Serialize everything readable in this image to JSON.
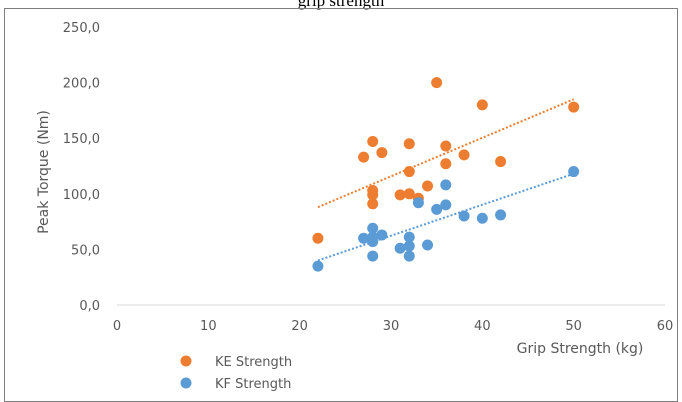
{
  "chart_data": {
    "type": "scatter",
    "title": "grip strength",
    "xlabel": "Grip Strength (kg)",
    "ylabel": "Peak Torque (Nm)",
    "xlim": [
      0,
      60
    ],
    "ylim": [
      0,
      250
    ],
    "xticks": [
      "0",
      "10",
      "20",
      "30",
      "40",
      "50",
      "60"
    ],
    "yticks": [
      "0,0",
      "50,0",
      "100,0",
      "150,0",
      "200,0",
      "250,0"
    ],
    "grid": false,
    "legend_position": "bottom-left",
    "series": [
      {
        "name": "KE Strength",
        "color": "#ed7d31",
        "points": [
          {
            "x": 22,
            "y": 60
          },
          {
            "x": 27,
            "y": 133
          },
          {
            "x": 28,
            "y": 147
          },
          {
            "x": 28,
            "y": 103
          },
          {
            "x": 28,
            "y": 99
          },
          {
            "x": 28,
            "y": 91
          },
          {
            "x": 29,
            "y": 137
          },
          {
            "x": 31,
            "y": 99
          },
          {
            "x": 32,
            "y": 145
          },
          {
            "x": 32,
            "y": 120
          },
          {
            "x": 32,
            "y": 100
          },
          {
            "x": 33,
            "y": 96
          },
          {
            "x": 34,
            "y": 107
          },
          {
            "x": 35,
            "y": 200
          },
          {
            "x": 36,
            "y": 143
          },
          {
            "x": 36,
            "y": 127
          },
          {
            "x": 38,
            "y": 135
          },
          {
            "x": 40,
            "y": 180
          },
          {
            "x": 42,
            "y": 129
          },
          {
            "x": 50,
            "y": 178
          }
        ],
        "trendline": {
          "x": [
            22,
            50
          ],
          "y": [
            88,
            185
          ]
        }
      },
      {
        "name": "KF Strength",
        "color": "#5b9bd5",
        "points": [
          {
            "x": 22,
            "y": 35
          },
          {
            "x": 27,
            "y": 60
          },
          {
            "x": 28,
            "y": 69
          },
          {
            "x": 28,
            "y": 61
          },
          {
            "x": 28,
            "y": 57
          },
          {
            "x": 28,
            "y": 44
          },
          {
            "x": 29,
            "y": 63
          },
          {
            "x": 31,
            "y": 51
          },
          {
            "x": 32,
            "y": 61
          },
          {
            "x": 32,
            "y": 53
          },
          {
            "x": 32,
            "y": 44
          },
          {
            "x": 33,
            "y": 92
          },
          {
            "x": 34,
            "y": 54
          },
          {
            "x": 35,
            "y": 86
          },
          {
            "x": 36,
            "y": 108
          },
          {
            "x": 36,
            "y": 90
          },
          {
            "x": 38,
            "y": 80
          },
          {
            "x": 40,
            "y": 78
          },
          {
            "x": 42,
            "y": 81
          },
          {
            "x": 50,
            "y": 120
          }
        ],
        "trendline": {
          "x": [
            22,
            50
          ],
          "y": [
            40,
            118
          ]
        }
      }
    ]
  }
}
